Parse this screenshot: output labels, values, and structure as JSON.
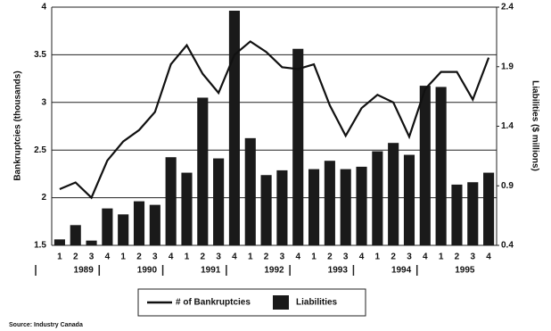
{
  "chart_data": {
    "type": "bar-line",
    "categories": [
      "1",
      "2",
      "3",
      "4",
      "1",
      "2",
      "3",
      "4",
      "1",
      "2",
      "3",
      "4",
      "1",
      "2",
      "3",
      "4",
      "1",
      "2",
      "3",
      "4",
      "1",
      "2",
      "3",
      "4",
      "1",
      "2",
      "3",
      "4"
    ],
    "years": [
      "1989",
      "1990",
      "1991",
      "1992",
      "1993",
      "1994",
      "1995"
    ],
    "ylabel": "Bankruptcies (thousands)",
    "y2label": "Liabilities ($ millions)",
    "ylim": [
      1.5,
      4
    ],
    "yticks": [
      1.5,
      2,
      2.5,
      3,
      3.5,
      4
    ],
    "y2lim": [
      0.4,
      2.4
    ],
    "y2ticks": [
      0.4,
      0.9,
      1.4,
      1.9,
      2.4
    ],
    "grid": true,
    "series": [
      {
        "name": "# of Bankruptcies",
        "type": "line",
        "color": "#111111",
        "axis": "y",
        "values": [
          2.09,
          2.16,
          2.0,
          2.39,
          2.59,
          2.71,
          2.9,
          3.4,
          3.6,
          3.3,
          3.1,
          3.5,
          3.64,
          3.53,
          3.37,
          3.35,
          3.4,
          2.97,
          2.65,
          2.94,
          3.08,
          3.0,
          2.64,
          3.14,
          3.32,
          3.32,
          3.03,
          3.47
        ]
      },
      {
        "name": "Liabilities",
        "type": "bar",
        "color": "#1a1a1a",
        "axis": "y2",
        "values": [
          0.45,
          0.57,
          0.44,
          0.71,
          0.66,
          0.77,
          0.74,
          1.14,
          1.01,
          1.64,
          1.13,
          2.37,
          1.3,
          0.99,
          1.03,
          2.05,
          1.04,
          1.11,
          1.04,
          1.06,
          1.19,
          1.26,
          1.16,
          1.74,
          1.73,
          0.91,
          0.93,
          1.01
        ]
      }
    ],
    "legend": "bottom",
    "source": "Source: Industry Canada"
  }
}
